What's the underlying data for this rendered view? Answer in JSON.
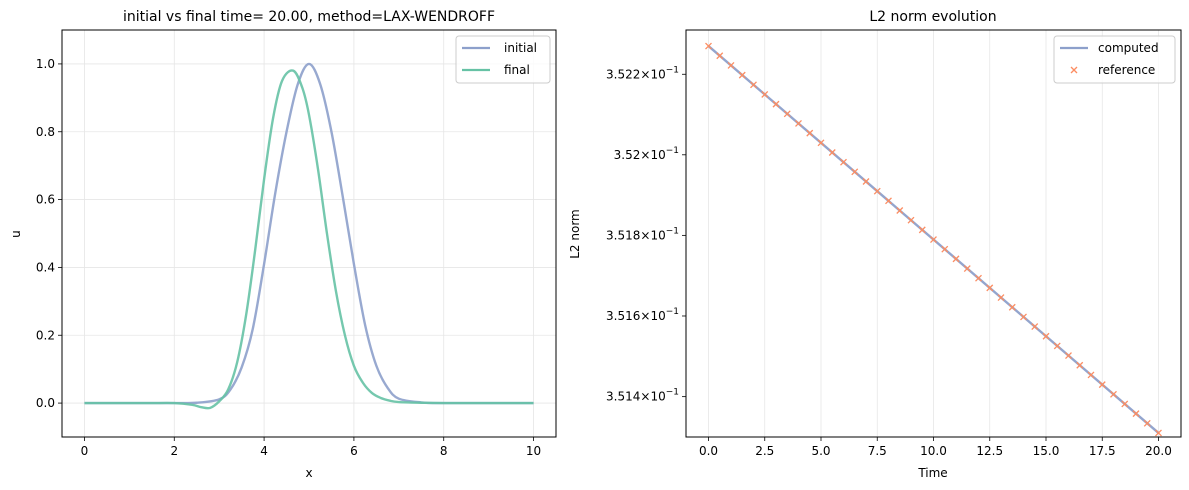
{
  "chart_data": [
    {
      "type": "line",
      "title": "initial vs final time= 20.00, method=LAX-WENDROFF",
      "xlabel": "x",
      "ylabel": "u",
      "xlim": [
        -0.5,
        10.5
      ],
      "ylim": [
        -0.1,
        1.1
      ],
      "xticks": [
        "0",
        "2",
        "4",
        "6",
        "8",
        "10"
      ],
      "yticks": [
        "0.0",
        "0.2",
        "0.4",
        "0.6",
        "0.8",
        "1.0"
      ],
      "grid": true,
      "legend_position": "top-right",
      "series": [
        {
          "name": "initial",
          "color": "#8da0cb",
          "x": [
            0,
            0.5,
            1,
            1.5,
            2,
            2.5,
            3,
            3.25,
            3.5,
            3.75,
            4,
            4.25,
            4.5,
            4.75,
            5,
            5.25,
            5.5,
            5.75,
            6,
            6.25,
            6.5,
            6.75,
            7,
            7.5,
            8,
            9,
            10
          ],
          "y": [
            0,
            0,
            0,
            0,
            0,
            0.001,
            0.011,
            0.04,
            0.105,
            0.22,
            0.41,
            0.62,
            0.8,
            0.94,
            1.0,
            0.94,
            0.8,
            0.61,
            0.41,
            0.23,
            0.11,
            0.045,
            0.013,
            0.002,
            0,
            0,
            0
          ]
        },
        {
          "name": "final",
          "color": "#66c2a5",
          "x": [
            0,
            0.5,
            1,
            1.5,
            2,
            2.4,
            2.6,
            2.8,
            3.0,
            3.2,
            3.4,
            3.6,
            3.8,
            4.0,
            4.2,
            4.4,
            4.65,
            4.85,
            5.0,
            5.2,
            5.4,
            5.6,
            5.8,
            6.0,
            6.2,
            6.4,
            6.6,
            6.8,
            7.0,
            7.5,
            8,
            9,
            10
          ],
          "y": [
            0,
            0,
            0,
            0,
            0,
            -0.005,
            -0.012,
            -0.014,
            0.005,
            0.04,
            0.12,
            0.26,
            0.45,
            0.66,
            0.84,
            0.95,
            0.98,
            0.93,
            0.85,
            0.69,
            0.5,
            0.33,
            0.2,
            0.11,
            0.06,
            0.03,
            0.015,
            0.007,
            0.003,
            0.001,
            0,
            0,
            0
          ]
        }
      ]
    },
    {
      "type": "line",
      "title": "L2 norm evolution",
      "xlabel": "Time",
      "ylabel": "L2 norm",
      "xlim": [
        -1.0,
        21.0
      ],
      "ylim": [
        0.3513,
        0.35231
      ],
      "y_scale": "log",
      "xticks": [
        "0.0",
        "2.5",
        "5.0",
        "7.5",
        "10.0",
        "12.5",
        "15.0",
        "17.5",
        "20.0"
      ],
      "yticks": [
        {
          "value": 0.3514,
          "mantissa": "3.514",
          "exponent": "−1"
        },
        {
          "value": 0.3516,
          "mantissa": "3.516",
          "exponent": "−1"
        },
        {
          "value": 0.3518,
          "mantissa": "3.518",
          "exponent": "−1"
        },
        {
          "value": 0.352,
          "mantissa": "3.52",
          "exponent": "−1"
        },
        {
          "value": 0.3522,
          "mantissa": "3.522",
          "exponent": "−1"
        }
      ],
      "tick_base": "10",
      "tick_times": "×",
      "grid": true,
      "legend_position": "top-right",
      "series": [
        {
          "name": "computed",
          "style": "line",
          "color": "#8da0cb",
          "x": [
            0,
            20
          ],
          "y": [
            0.35227,
            0.35131
          ]
        },
        {
          "name": "reference",
          "style": "marker-x",
          "color": "#fc8d62",
          "x_start": 0,
          "x_step": 0.5,
          "count": 41,
          "y_start": 0.35227,
          "y_end": 0.35131
        }
      ]
    }
  ]
}
